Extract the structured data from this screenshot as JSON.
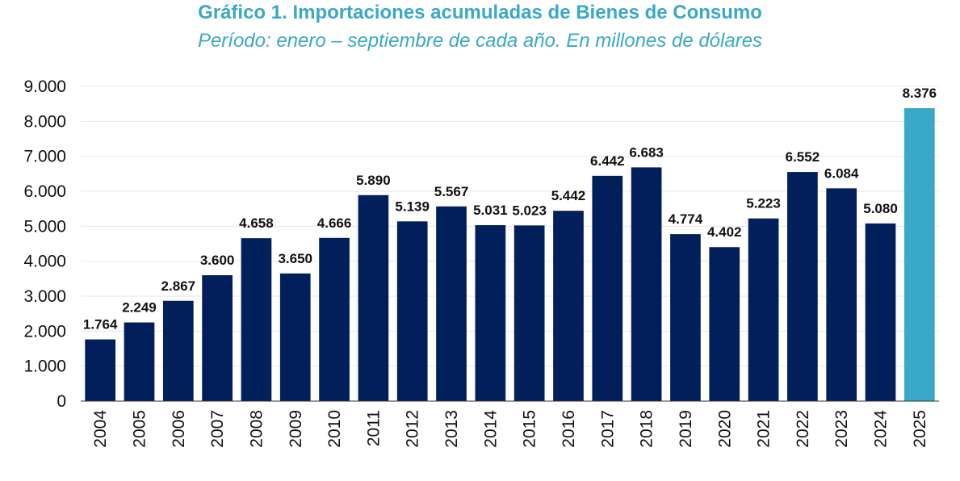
{
  "chart_data": {
    "type": "bar",
    "title": "Gráfico 1. Importaciones acumuladas de Bienes de Consumo",
    "subtitle": "Período: enero – septiembre de cada año. En millones de dólares",
    "xlabel": "",
    "ylabel": "",
    "ylim": [
      0,
      9000
    ],
    "yticks": [
      0,
      1000,
      2000,
      3000,
      4000,
      5000,
      6000,
      7000,
      8000,
      9000
    ],
    "ytick_labels": [
      "0",
      "1.000",
      "2.000",
      "3.000",
      "4.000",
      "5.000",
      "6.000",
      "7.000",
      "8.000",
      "9.000"
    ],
    "grid": true,
    "categories": [
      "2004",
      "2005",
      "2006",
      "2007",
      "2008",
      "2009",
      "2010",
      "2011",
      "2012",
      "2013",
      "2014",
      "2015",
      "2016",
      "2017",
      "2018",
      "2019",
      "2020",
      "2021",
      "2022",
      "2023",
      "2024",
      "2025"
    ],
    "values": [
      1764,
      2249,
      2867,
      3600,
      4658,
      3650,
      4666,
      5890,
      5139,
      5567,
      5031,
      5023,
      5442,
      6442,
      6683,
      4774,
      4402,
      5223,
      6552,
      6084,
      5080,
      8376
    ],
    "data_labels": [
      "1.764",
      "2.249",
      "2.867",
      "3.600",
      "4.658",
      "3.650",
      "4.666",
      "5.890",
      "5.139",
      "5.567",
      "5.031",
      "5.023",
      "5.442",
      "6.442",
      "6.683",
      "4.774",
      "4.402",
      "5.223",
      "6.552",
      "6.084",
      "5.080",
      "8.376"
    ],
    "colors": {
      "bar": "#001f5b",
      "highlight": "#3aa8c8",
      "title": "#3aa8c8",
      "grid": "#e6e6e6",
      "axis": "#333333"
    },
    "highlight_index": 21
  }
}
